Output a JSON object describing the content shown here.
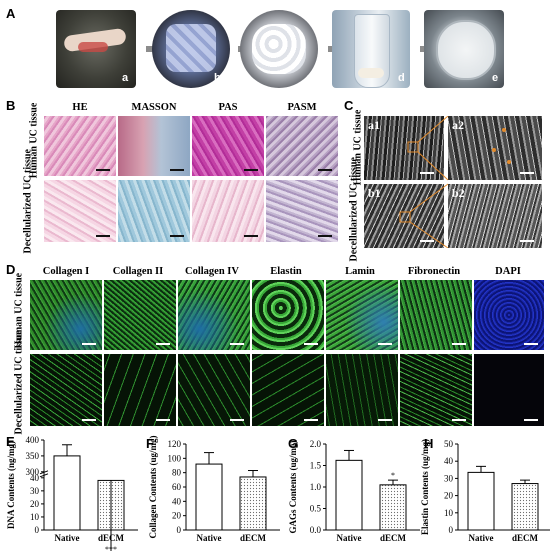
{
  "panels": {
    "A": {
      "label": "A",
      "subpanels": [
        "a",
        "b",
        "c",
        "d",
        "e"
      ]
    },
    "B": {
      "label": "B",
      "columns": [
        "HE",
        "MASSON",
        "PAS",
        "PASM"
      ],
      "rows": [
        "Human UC tissue",
        "Decellularized UC tissue"
      ]
    },
    "C": {
      "label": "C",
      "subpanels": [
        "a1",
        "a2",
        "b1",
        "b2"
      ],
      "rows": [
        "Human UC tissue",
        "Decellularized UC tissue"
      ]
    },
    "D": {
      "label": "D",
      "columns": [
        "Collagen I",
        "Collagen II",
        "Collagen IV",
        "Elastin",
        "Lamin",
        "Fibronectin",
        "DAPI"
      ],
      "rows": [
        "Human UC tissue",
        "Decellularized UC tissue"
      ]
    }
  },
  "chart_data": [
    {
      "panel": "E",
      "type": "bar",
      "categories": [
        "Native",
        "dECM"
      ],
      "values": [
        350,
        38
      ],
      "errors": [
        35,
        4
      ],
      "ylabel": "DNA Contents (ng/mg)",
      "yticks": [
        "0",
        "10",
        "20",
        "30",
        "40",
        "300",
        "350",
        "400"
      ],
      "broken_axis": true,
      "significance": "***",
      "fills": [
        "#ffffff",
        "dotted"
      ]
    },
    {
      "panel": "F",
      "type": "bar",
      "categories": [
        "Native",
        "dECM"
      ],
      "values": [
        92,
        74
      ],
      "errors": [
        16,
        9
      ],
      "ylabel": "Collagen Contents (ug/mg)",
      "ylim": [
        0,
        120
      ],
      "yticks": [
        "0",
        "20",
        "40",
        "60",
        "80",
        "100",
        "120"
      ],
      "fills": [
        "#ffffff",
        "dotted"
      ]
    },
    {
      "panel": "G",
      "type": "bar",
      "categories": [
        "Native",
        "dECM"
      ],
      "values": [
        1.62,
        1.05
      ],
      "errors": [
        0.23,
        0.11
      ],
      "ylabel": "GAGs Contents (ug/mg)",
      "ylim": [
        0,
        2.0
      ],
      "yticks": [
        "0.0",
        "0.5",
        "1.0",
        "1.5",
        "2.0"
      ],
      "significance": "*",
      "fills": [
        "#ffffff",
        "dotted"
      ]
    },
    {
      "panel": "H",
      "type": "bar",
      "categories": [
        "Native",
        "dECM"
      ],
      "values": [
        33.5,
        27
      ],
      "errors": [
        3.5,
        2
      ],
      "ylabel": "Elastin Contents (ug/mg)",
      "ylim": [
        0,
        50
      ],
      "yticks": [
        "0",
        "10",
        "20",
        "30",
        "40",
        "50"
      ],
      "fills": [
        "#ffffff",
        "dotted"
      ]
    }
  ],
  "chart_labels": {
    "E": "E",
    "F": "F",
    "G": "G",
    "H": "H"
  }
}
